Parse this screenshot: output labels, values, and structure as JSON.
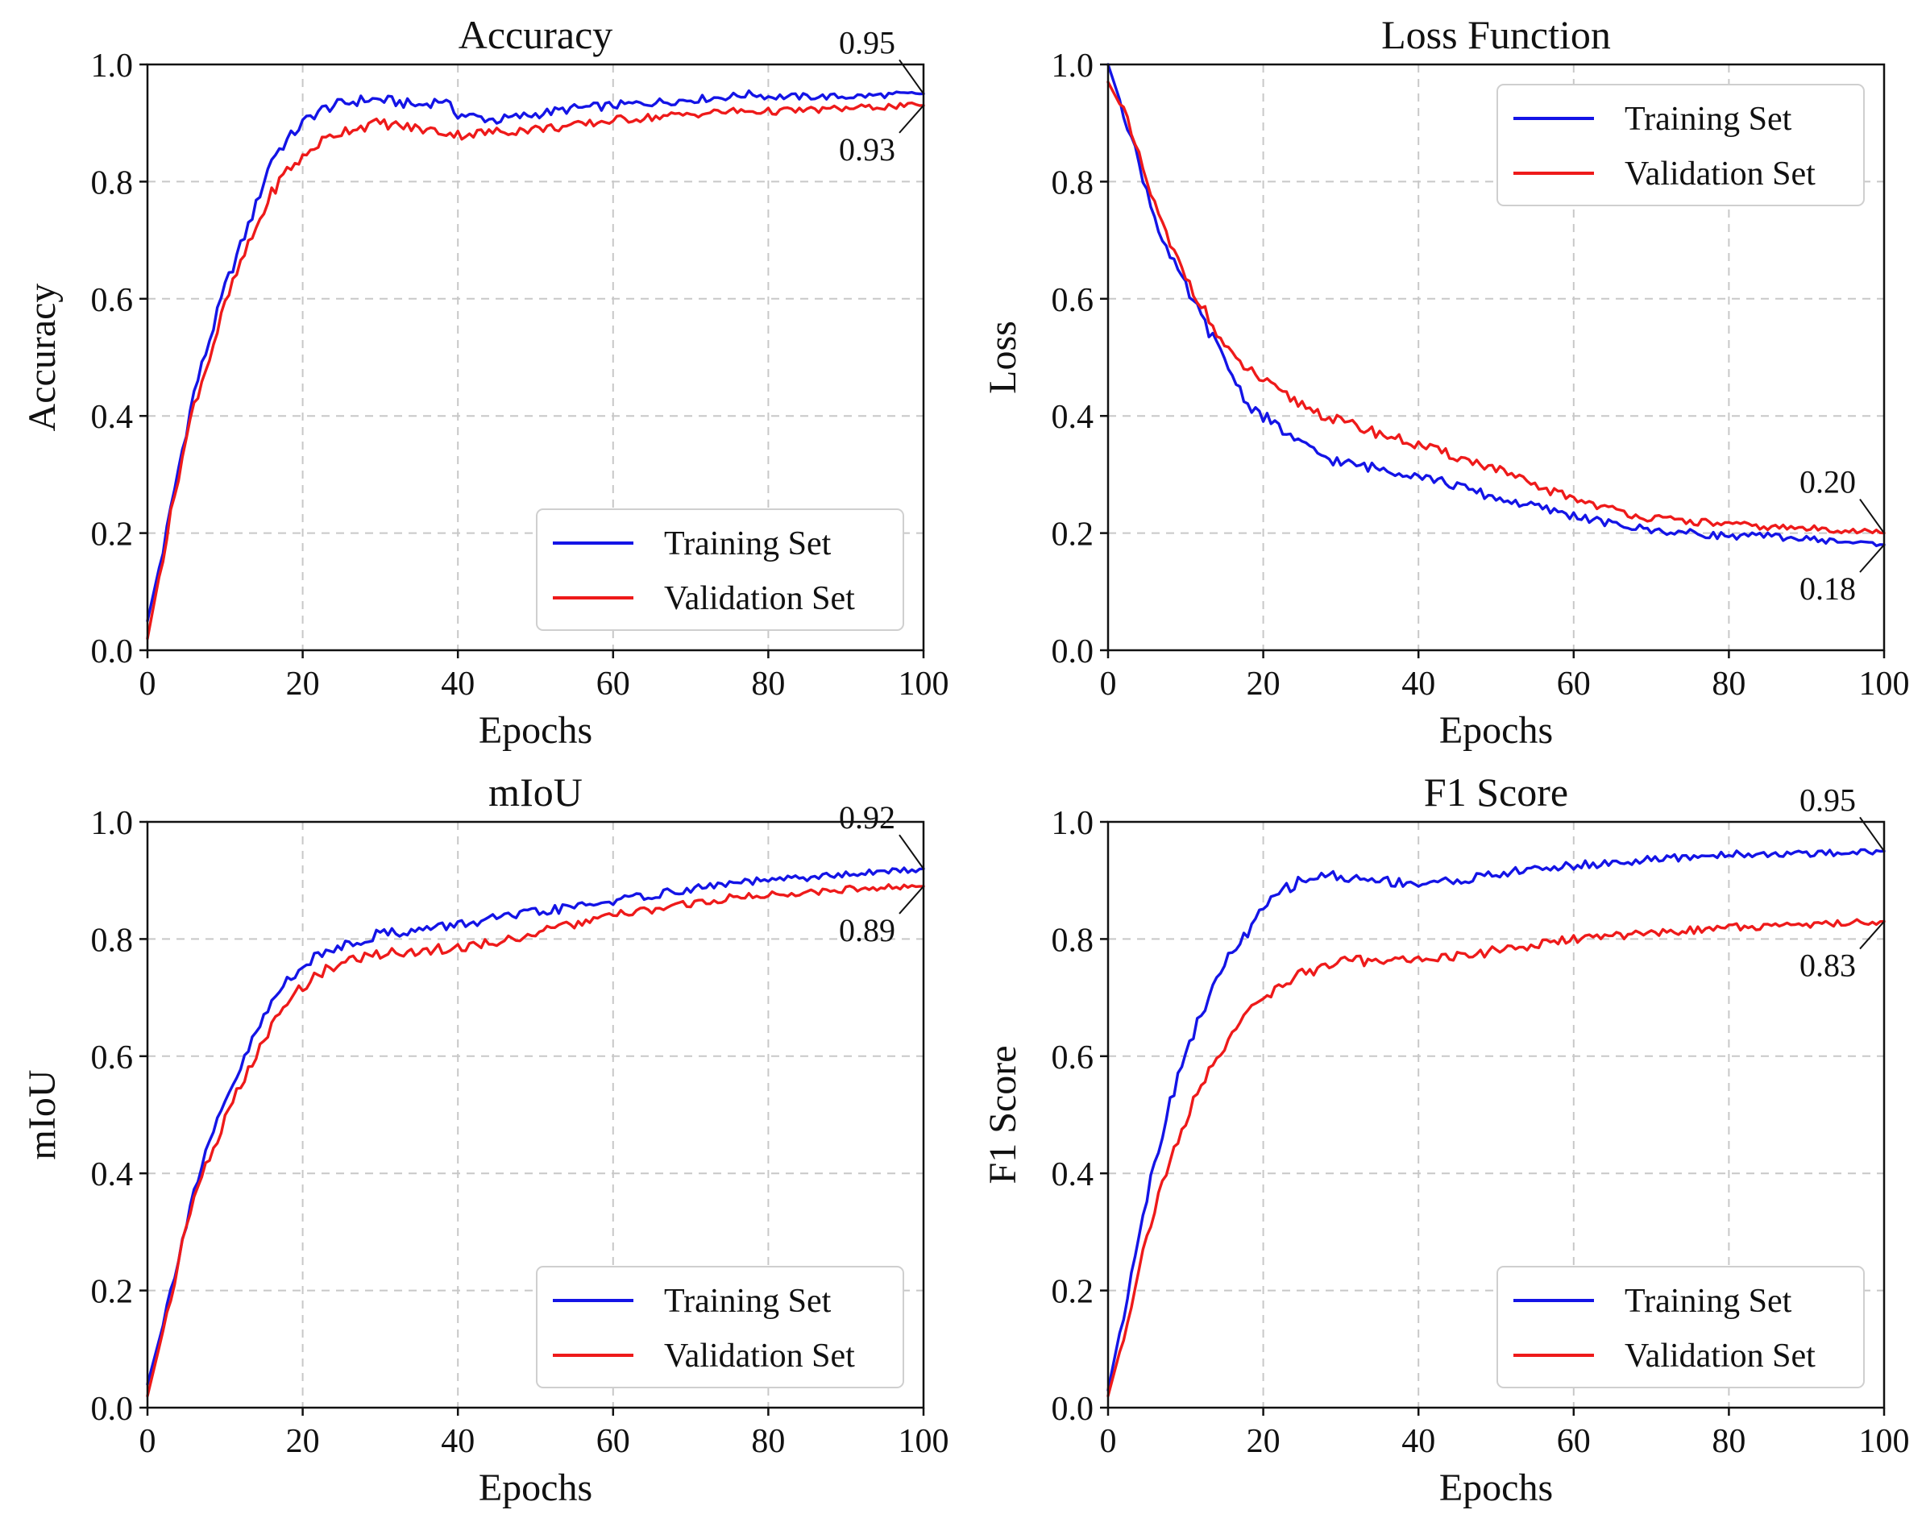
{
  "colors": {
    "training": "#1414e6",
    "validation": "#ee1a1a"
  },
  "chart_data": [
    {
      "type": "line",
      "title": "Accuracy",
      "xlabel": "Epochs",
      "ylabel": "Accuracy",
      "xlim": [
        0,
        100
      ],
      "ylim": [
        0,
        1
      ],
      "xticks": [
        0,
        20,
        40,
        60,
        80,
        100
      ],
      "yticks": [
        0.0,
        0.2,
        0.4,
        0.6,
        0.8,
        1.0
      ],
      "xtick_labels": [
        "0",
        "20",
        "40",
        "60",
        "80",
        "100"
      ],
      "ytick_labels": [
        "0.0",
        "0.2",
        "0.4",
        "0.6",
        "0.8",
        "1.0"
      ],
      "grid": true,
      "legend_position": "lower-right",
      "x": [
        0,
        2,
        4,
        6,
        8,
        10,
        12,
        14,
        16,
        18,
        20,
        22,
        24,
        26,
        28,
        30,
        35,
        38,
        40,
        45,
        50,
        55,
        60,
        65,
        70,
        75,
        78,
        80,
        85,
        90,
        95,
        100
      ],
      "series": [
        {
          "name": "Training Set",
          "color_key": "training",
          "values": [
            0.05,
            0.17,
            0.31,
            0.44,
            0.53,
            0.62,
            0.69,
            0.76,
            0.84,
            0.87,
            0.9,
            0.92,
            0.93,
            0.935,
            0.94,
            0.94,
            0.93,
            0.94,
            0.915,
            0.905,
            0.915,
            0.925,
            0.93,
            0.935,
            0.94,
            0.945,
            0.95,
            0.945,
            0.945,
            0.945,
            0.948,
            0.95
          ]
        },
        {
          "name": "Validation Set",
          "color_key": "validation",
          "values": [
            0.02,
            0.16,
            0.3,
            0.42,
            0.5,
            0.59,
            0.66,
            0.72,
            0.78,
            0.82,
            0.84,
            0.865,
            0.88,
            0.89,
            0.895,
            0.9,
            0.89,
            0.885,
            0.88,
            0.885,
            0.89,
            0.895,
            0.905,
            0.91,
            0.915,
            0.92,
            0.92,
            0.92,
            0.922,
            0.925,
            0.928,
            0.93
          ]
        }
      ],
      "annotations": [
        {
          "text": "0.95",
          "x": 100,
          "y": 0.95,
          "series": "Training Set"
        },
        {
          "text": "0.93",
          "x": 100,
          "y": 0.93,
          "series": "Validation Set"
        }
      ]
    },
    {
      "type": "line",
      "title": "Loss Function",
      "xlabel": "Epochs",
      "ylabel": "Loss",
      "xlim": [
        0,
        100
      ],
      "ylim": [
        0,
        1
      ],
      "xticks": [
        0,
        20,
        40,
        60,
        80,
        100
      ],
      "yticks": [
        0.0,
        0.2,
        0.4,
        0.6,
        0.8,
        1.0
      ],
      "xtick_labels": [
        "0",
        "20",
        "40",
        "60",
        "80",
        "100"
      ],
      "ytick_labels": [
        "0.0",
        "0.2",
        "0.4",
        "0.6",
        "0.8",
        "1.0"
      ],
      "grid": true,
      "legend_position": "upper-right",
      "x": [
        0,
        2,
        4,
        6,
        8,
        10,
        12,
        14,
        16,
        18,
        20,
        22,
        25,
        28,
        30,
        35,
        40,
        45,
        50,
        55,
        60,
        65,
        70,
        75,
        80,
        85,
        90,
        95,
        100
      ],
      "series": [
        {
          "name": "Training Set",
          "color_key": "training",
          "values": [
            1.0,
            0.92,
            0.83,
            0.74,
            0.67,
            0.62,
            0.57,
            0.52,
            0.47,
            0.42,
            0.4,
            0.38,
            0.35,
            0.33,
            0.32,
            0.31,
            0.3,
            0.28,
            0.26,
            0.245,
            0.23,
            0.215,
            0.205,
            0.2,
            0.195,
            0.195,
            0.19,
            0.185,
            0.18
          ]
        },
        {
          "name": "Validation Set",
          "color_key": "validation",
          "values": [
            0.97,
            0.92,
            0.84,
            0.76,
            0.69,
            0.64,
            0.59,
            0.54,
            0.5,
            0.48,
            0.46,
            0.44,
            0.42,
            0.4,
            0.39,
            0.37,
            0.35,
            0.33,
            0.31,
            0.28,
            0.26,
            0.24,
            0.225,
            0.22,
            0.215,
            0.21,
            0.208,
            0.205,
            0.2
          ]
        }
      ],
      "annotations": [
        {
          "text": "0.20",
          "x": 100,
          "y": 0.2,
          "series": "Validation Set"
        },
        {
          "text": "0.18",
          "x": 100,
          "y": 0.18,
          "series": "Training Set"
        }
      ]
    },
    {
      "type": "line",
      "title": "mIoU",
      "xlabel": "Epochs",
      "ylabel": "mIoU",
      "xlim": [
        0,
        100
      ],
      "ylim": [
        0,
        1
      ],
      "xticks": [
        0,
        20,
        40,
        60,
        80,
        100
      ],
      "yticks": [
        0.0,
        0.2,
        0.4,
        0.6,
        0.8,
        1.0
      ],
      "xtick_labels": [
        "0",
        "20",
        "40",
        "60",
        "80",
        "100"
      ],
      "ytick_labels": [
        "0.0",
        "0.2",
        "0.4",
        "0.6",
        "0.8",
        "1.0"
      ],
      "grid": true,
      "legend_position": "lower-right",
      "x": [
        0,
        2,
        4,
        6,
        8,
        10,
        12,
        14,
        16,
        18,
        20,
        22,
        25,
        28,
        30,
        35,
        40,
        45,
        50,
        55,
        60,
        65,
        70,
        75,
        80,
        85,
        90,
        95,
        100
      ],
      "series": [
        {
          "name": "Training Set",
          "color_key": "training",
          "values": [
            0.04,
            0.14,
            0.26,
            0.37,
            0.45,
            0.52,
            0.58,
            0.64,
            0.69,
            0.73,
            0.755,
            0.77,
            0.79,
            0.8,
            0.81,
            0.815,
            0.825,
            0.835,
            0.845,
            0.855,
            0.865,
            0.875,
            0.885,
            0.895,
            0.9,
            0.905,
            0.91,
            0.915,
            0.92
          ]
        },
        {
          "name": "Validation Set",
          "color_key": "validation",
          "values": [
            0.02,
            0.13,
            0.25,
            0.36,
            0.43,
            0.49,
            0.55,
            0.6,
            0.65,
            0.69,
            0.72,
            0.74,
            0.76,
            0.77,
            0.775,
            0.78,
            0.785,
            0.795,
            0.81,
            0.825,
            0.84,
            0.85,
            0.86,
            0.87,
            0.875,
            0.88,
            0.885,
            0.888,
            0.89
          ]
        }
      ],
      "annotations": [
        {
          "text": "0.92",
          "x": 100,
          "y": 0.92,
          "series": "Training Set"
        },
        {
          "text": "0.89",
          "x": 100,
          "y": 0.89,
          "series": "Validation Set"
        }
      ]
    },
    {
      "type": "line",
      "title": "F1 Score",
      "xlabel": "Epochs",
      "ylabel": "F1 Score",
      "xlim": [
        0,
        100
      ],
      "ylim": [
        0,
        1
      ],
      "xticks": [
        0,
        20,
        40,
        60,
        80,
        100
      ],
      "yticks": [
        0.0,
        0.2,
        0.4,
        0.6,
        0.8,
        1.0
      ],
      "xtick_labels": [
        "0",
        "20",
        "40",
        "60",
        "80",
        "100"
      ],
      "ytick_labels": [
        "0.0",
        "0.2",
        "0.4",
        "0.6",
        "0.8",
        "1.0"
      ],
      "grid": true,
      "legend_position": "lower-right",
      "x": [
        0,
        2,
        4,
        6,
        8,
        10,
        12,
        14,
        16,
        18,
        20,
        22,
        25,
        28,
        30,
        35,
        40,
        45,
        50,
        55,
        60,
        65,
        70,
        75,
        80,
        85,
        90,
        95,
        100
      ],
      "series": [
        {
          "name": "Training Set",
          "color_key": "training",
          "values": [
            0.03,
            0.16,
            0.3,
            0.42,
            0.52,
            0.61,
            0.67,
            0.73,
            0.78,
            0.81,
            0.85,
            0.88,
            0.9,
            0.91,
            0.905,
            0.9,
            0.895,
            0.9,
            0.91,
            0.92,
            0.925,
            0.93,
            0.935,
            0.94,
            0.945,
            0.945,
            0.945,
            0.948,
            0.95
          ]
        },
        {
          "name": "Validation Set",
          "color_key": "validation",
          "values": [
            0.02,
            0.12,
            0.24,
            0.34,
            0.42,
            0.49,
            0.55,
            0.6,
            0.64,
            0.67,
            0.7,
            0.72,
            0.74,
            0.755,
            0.76,
            0.765,
            0.765,
            0.77,
            0.78,
            0.79,
            0.8,
            0.805,
            0.81,
            0.815,
            0.82,
            0.822,
            0.825,
            0.828,
            0.83
          ]
        }
      ],
      "annotations": [
        {
          "text": "0.95",
          "x": 100,
          "y": 0.95,
          "series": "Training Set"
        },
        {
          "text": "0.83",
          "x": 100,
          "y": 0.83,
          "series": "Validation Set"
        }
      ]
    }
  ]
}
